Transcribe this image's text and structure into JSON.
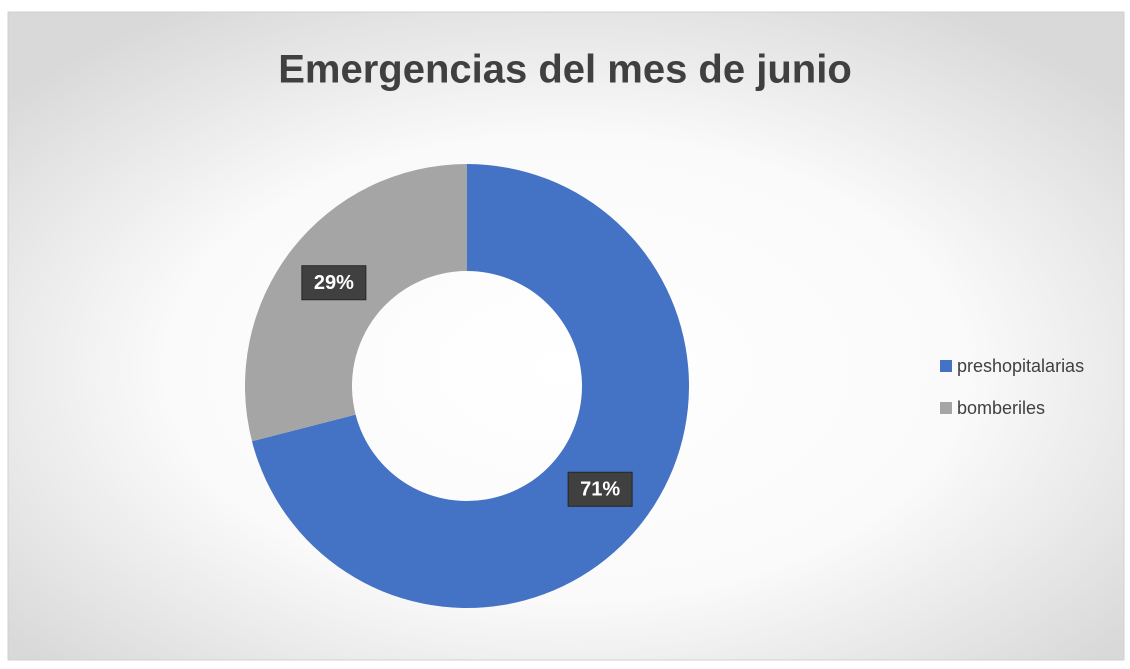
{
  "chart_data": {
    "type": "donut",
    "title": "Emergencias del mes de junio",
    "categories": [
      "preshopitalarias",
      "bomberiles"
    ],
    "values": [
      71,
      29
    ],
    "value_labels": [
      "71%",
      "29%"
    ],
    "colors": [
      "#4472c4",
      "#a5a5a5"
    ],
    "legend": "right"
  }
}
